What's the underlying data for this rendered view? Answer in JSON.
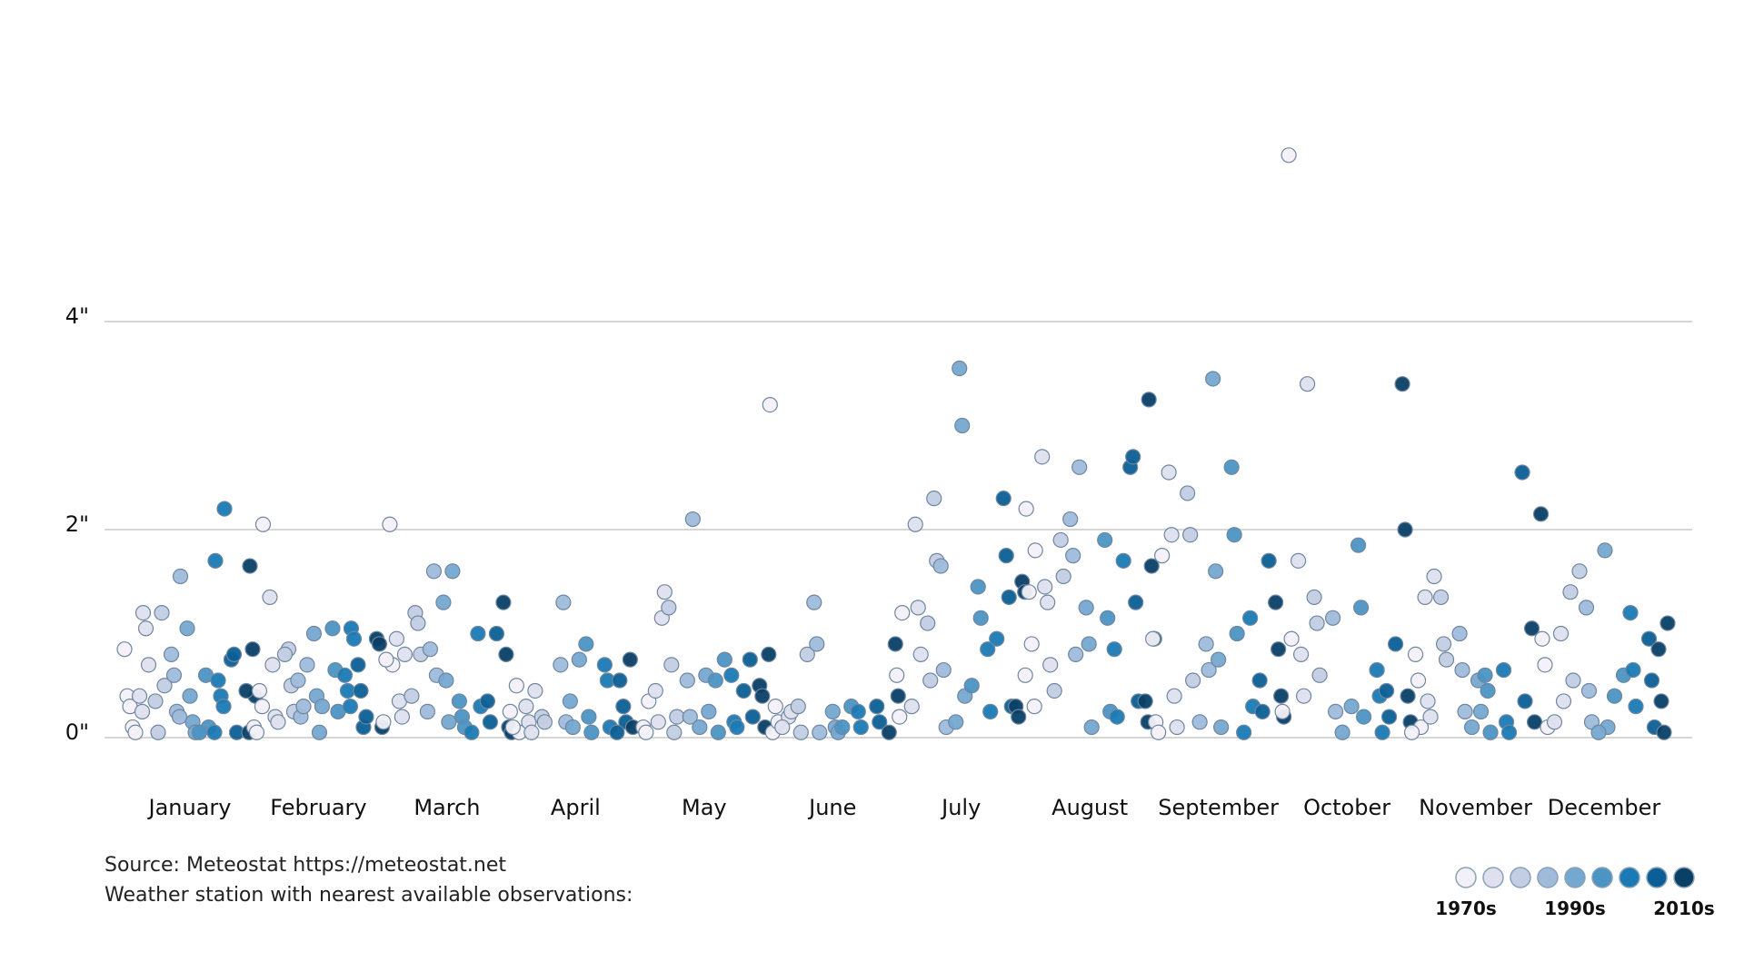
{
  "chart_data": {
    "type": "scatter",
    "title": "",
    "xlabel": "",
    "ylabel": "",
    "ylim": [
      0,
      5.9
    ],
    "y_ticks": [
      {
        "value": 0,
        "label": "0\""
      },
      {
        "value": 2,
        "label": "2\""
      },
      {
        "value": 4,
        "label": "4\""
      }
    ],
    "grid": true,
    "legend_position": "bottom-right",
    "legend": {
      "labels": [
        {
          "bin": 0,
          "label": "1970s"
        },
        {
          "bin": 4,
          "label": "1990s"
        },
        {
          "bin": 8,
          "label": "2010s"
        }
      ],
      "colors": [
        "#f3f1f8",
        "#dfe0ee",
        "#c3cde3",
        "#9fbadb",
        "#75a8d0",
        "#4c94c4",
        "#1a7ab5",
        "#0b5f96",
        "#0a3f66"
      ]
    },
    "months": [
      {
        "label": "January",
        "bins": [
          [
            0.85,
            0.4,
            0.3,
            0.1,
            0.05
          ],
          [
            1.2,
            1.05,
            0.7,
            0.4,
            0.25
          ],
          [
            1.2,
            0.5,
            0.35,
            0.05
          ],
          [
            1.55,
            0.8,
            0.6,
            0.25,
            0.2
          ],
          [
            1.05,
            0.4,
            0.15,
            0.05
          ],
          [
            0.6,
            0.1,
            0.05
          ],
          [
            2.2,
            1.7,
            0.55,
            0.4,
            0.3,
            0.05
          ],
          [
            0.75,
            0.8,
            0.05
          ],
          [
            1.65,
            0.85,
            0.4,
            0.45,
            0.05
          ]
        ]
      },
      {
        "label": "February",
        "bins": [
          [
            2.05,
            0.1,
            0.05,
            0.45,
            0.3
          ],
          [
            1.35,
            0.7,
            0.2,
            0.15
          ],
          [
            0.85,
            0.5,
            0.25,
            0.8
          ],
          [
            0.7,
            0.55,
            0.2,
            0.3
          ],
          [
            1.0,
            0.4,
            0.05,
            0.3
          ],
          [
            1.05,
            0.65,
            0.25
          ],
          [
            1.05,
            0.95,
            0.6,
            0.45,
            0.3
          ],
          [
            0.7,
            0.45,
            0.1,
            0.2
          ],
          [
            0.95,
            0.9,
            0.1
          ]
        ]
      },
      {
        "label": "March",
        "bins": [
          [
            2.05,
            0.7,
            0.15,
            0.75
          ],
          [
            0.95,
            0.35,
            0.2,
            0.8
          ],
          [
            1.2,
            1.1,
            0.8,
            0.4
          ],
          [
            1.6,
            0.6,
            0.25,
            0.85
          ],
          [
            1.6,
            1.3,
            0.55,
            0.15
          ],
          [
            0.35,
            0.2,
            0.1
          ],
          [
            1.0,
            0.3,
            0.05
          ],
          [
            1.0,
            0.35,
            0.15
          ],
          [
            1.3,
            0.8,
            0.1,
            0.05
          ]
        ]
      },
      {
        "label": "April",
        "bins": [
          [
            0.5,
            0.05,
            0.25,
            0.1
          ],
          [
            0.45,
            0.3,
            0.15,
            0.05
          ],
          [
            0.2,
            0.15
          ],
          [
            0.7,
            1.3,
            0.15
          ],
          [
            0.75,
            0.35,
            0.1
          ],
          [
            0.9,
            0.2,
            0.05
          ],
          [
            0.7,
            0.55,
            0.1
          ],
          [
            0.3,
            0.15,
            0.05,
            0.55
          ],
          [
            0.75,
            0.1
          ]
        ]
      },
      {
        "label": "May",
        "bins": [
          [
            0.1,
            0.05,
            0.35
          ],
          [
            1.15,
            1.4,
            0.45,
            0.15
          ],
          [
            1.25,
            0.7,
            0.05,
            0.2
          ],
          [
            0.55,
            0.2,
            2.1
          ],
          [
            0.6,
            0.25,
            0.1
          ],
          [
            0.75,
            0.55,
            0.05
          ],
          [
            0.6,
            0.15,
            0.1
          ],
          [
            0.75,
            0.2,
            0.45
          ],
          [
            0.8,
            0.5,
            0.4,
            0.1
          ]
        ]
      },
      {
        "label": "June",
        "bins": [
          [
            3.2,
            0.05,
            0.3,
            0.15
          ],
          [
            0.2,
            0.25,
            0.1
          ],
          [
            0.8,
            0.3,
            0.05
          ],
          [
            1.3,
            0.9,
            0.05
          ],
          [
            0.25,
            0.1,
            0.05
          ],
          [
            0.3,
            0.1
          ],
          [
            0.25,
            0.1
          ],
          [
            0.3,
            0.15
          ],
          [
            0.9,
            0.4,
            0.05
          ]
        ]
      },
      {
        "label": "July",
        "bins": [
          [
            0.6,
            0.2,
            1.2
          ],
          [
            2.05,
            1.25,
            0.8,
            0.3
          ],
          [
            2.3,
            1.7,
            1.1,
            0.55
          ],
          [
            1.65,
            0.65,
            0.1
          ],
          [
            3.55,
            3.0,
            0.4,
            0.15
          ],
          [
            1.45,
            1.15,
            0.5
          ],
          [
            0.95,
            0.85,
            0.25
          ],
          [
            2.3,
            1.75,
            1.35,
            0.3
          ],
          [
            1.5,
            1.4,
            0.3,
            0.2
          ]
        ]
      },
      {
        "label": "August",
        "bins": [
          [
            1.8,
            2.2,
            1.4,
            0.9,
            0.3,
            0.6
          ],
          [
            2.7,
            1.45,
            1.3,
            0.7
          ],
          [
            1.9,
            1.55,
            0.45
          ],
          [
            2.6,
            2.1,
            1.75,
            0.8
          ],
          [
            1.25,
            0.9,
            0.1
          ],
          [
            1.9,
            1.15,
            0.25
          ],
          [
            1.7,
            0.85,
            0.2
          ],
          [
            2.6,
            2.7,
            1.3,
            0.35
          ],
          [
            3.25,
            1.65,
            0.95,
            0.35,
            0.15
          ]
        ]
      },
      {
        "label": "September",
        "bins": [
          [
            1.75,
            0.95,
            0.15,
            0.05
          ],
          [
            2.55,
            1.95,
            0.4,
            0.1
          ],
          [
            2.35,
            1.95,
            0.55
          ],
          [
            0.9,
            0.65,
            0.15
          ],
          [
            3.45,
            1.6,
            0.75,
            0.1
          ],
          [
            2.6,
            1.95,
            1.0
          ],
          [
            1.15,
            0.3,
            0.05
          ],
          [
            1.7,
            0.55,
            0.25
          ],
          [
            1.3,
            0.85,
            0.4,
            0.2
          ]
        ]
      },
      {
        "label": "October",
        "bins": [
          [
            5.6,
            0.95,
            0.25
          ],
          [
            3.4,
            1.7,
            0.8,
            0.4
          ],
          [
            1.35,
            1.1,
            0.6
          ],
          [
            1.15,
            0.25
          ],
          [
            0.3,
            0.05
          ],
          [
            1.85,
            1.25,
            0.2
          ],
          [
            0.65,
            0.4,
            0.05
          ],
          [
            0.9,
            0.45,
            0.2
          ],
          [
            3.4,
            2.0,
            0.4,
            0.15
          ]
        ]
      },
      {
        "label": "November",
        "bins": [
          [
            0.8,
            0.55,
            0.1,
            0.05
          ],
          [
            1.55,
            1.35,
            0.35,
            0.2
          ],
          [
            1.35,
            0.9,
            0.75
          ],
          [
            1.0,
            0.65,
            0.25
          ],
          [
            0.55,
            0.25,
            0.1
          ],
          [
            0.6,
            0.45,
            0.05
          ],
          [
            0.65,
            0.15,
            0.05
          ],
          [
            2.55,
            0.35
          ],
          [
            2.15,
            1.05,
            0.15
          ]
        ]
      },
      {
        "label": "December",
        "bins": [
          [
            0.95,
            0.7,
            0.1
          ],
          [
            1.0,
            0.35,
            0.15
          ],
          [
            1.6,
            1.4,
            0.55
          ],
          [
            1.25,
            0.45,
            0.15
          ],
          [
            1.8,
            0.1,
            0.05
          ],
          [
            0.6,
            0.4
          ],
          [
            1.2,
            0.65,
            0.3
          ],
          [
            0.95,
            0.55,
            0.1
          ],
          [
            1.1,
            0.85,
            0.35,
            0.05
          ]
        ]
      }
    ]
  },
  "footer": {
    "source": "Source: Meteostat https://meteostat.net",
    "station": "Weather station with nearest available observations:"
  }
}
